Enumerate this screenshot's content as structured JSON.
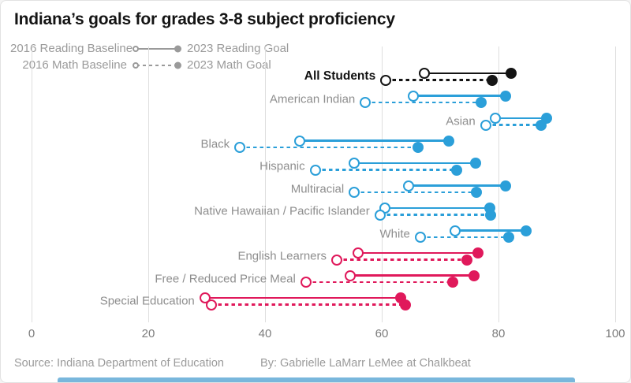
{
  "title": "Indiana’s goals for grades 3-8 subject proficiency",
  "legend": {
    "reading": {
      "left": "2016 Reading Baseline",
      "right": "2023 Reading Goal",
      "style": "solid"
    },
    "math": {
      "left": "2016 Math Baseline",
      "right": "2023 Math Goal",
      "style": "dashed"
    }
  },
  "footer": {
    "source": "Source: Indiana Department of Education",
    "byline": "By: Gabrielle LaMarr LeMee at Chalkbeat"
  },
  "colors": {
    "blue": "#2b9fd9",
    "pink": "#e0195b",
    "black": "#141414",
    "grid": "#dedede",
    "muted_text": "#8e8e8e",
    "footer_bar": "#79b7dc"
  },
  "chart_data": {
    "type": "dumbbell",
    "title": "Indiana’s goals for grades 3-8 subject proficiency",
    "xlabel": "",
    "ylabel": "",
    "xlim": [
      0,
      100
    ],
    "x_ticks": [
      0,
      20,
      40,
      60,
      80,
      100
    ],
    "grid": "vertical",
    "legend_position": "top-left",
    "legend_entries": [
      "2016 Reading Baseline",
      "2023 Reading Goal",
      "2016 Math Baseline",
      "2023 Math Goal"
    ],
    "series": [
      {
        "category": "All Students",
        "color": "#141414",
        "emphasis": true,
        "reading_baseline_2016": 67.3,
        "reading_goal_2023": 82.2,
        "math_baseline_2016": 60.7,
        "math_goal_2023": 78.9
      },
      {
        "category": "American Indian",
        "color": "#2b9fd9",
        "emphasis": false,
        "reading_baseline_2016": 65.4,
        "reading_goal_2023": 81.2,
        "math_baseline_2016": 57.2,
        "math_goal_2023": 77.0
      },
      {
        "category": "Asian",
        "color": "#2b9fd9",
        "emphasis": false,
        "reading_baseline_2016": 79.5,
        "reading_goal_2023": 88.2,
        "math_baseline_2016": 77.8,
        "math_goal_2023": 87.3
      },
      {
        "category": "Black",
        "color": "#2b9fd9",
        "emphasis": false,
        "reading_baseline_2016": 45.9,
        "reading_goal_2023": 71.5,
        "math_baseline_2016": 35.7,
        "math_goal_2023": 66.2
      },
      {
        "category": "Hispanic",
        "color": "#2b9fd9",
        "emphasis": false,
        "reading_baseline_2016": 55.3,
        "reading_goal_2023": 76.1,
        "math_baseline_2016": 48.6,
        "math_goal_2023": 72.8
      },
      {
        "category": "Multiracial",
        "color": "#2b9fd9",
        "emphasis": false,
        "reading_baseline_2016": 64.6,
        "reading_goal_2023": 81.2,
        "math_baseline_2016": 55.3,
        "math_goal_2023": 76.2
      },
      {
        "category": "Native Hawaiian / Pacific Islander",
        "color": "#2b9fd9",
        "emphasis": false,
        "reading_baseline_2016": 60.5,
        "reading_goal_2023": 78.5,
        "math_baseline_2016": 59.7,
        "math_goal_2023": 78.7
      },
      {
        "category": "White",
        "color": "#2b9fd9",
        "emphasis": false,
        "reading_baseline_2016": 72.6,
        "reading_goal_2023": 84.7,
        "math_baseline_2016": 66.6,
        "math_goal_2023": 81.8
      },
      {
        "category": "English Learners",
        "color": "#e0195b",
        "emphasis": false,
        "reading_baseline_2016": 55.9,
        "reading_goal_2023": 76.5,
        "math_baseline_2016": 52.3,
        "math_goal_2023": 74.6
      },
      {
        "category": "Free / Reduced Price Meal",
        "color": "#e0195b",
        "emphasis": false,
        "reading_baseline_2016": 54.6,
        "reading_goal_2023": 75.8,
        "math_baseline_2016": 47.0,
        "math_goal_2023": 72.2
      },
      {
        "category": "Special Education",
        "color": "#e0195b",
        "emphasis": false,
        "reading_baseline_2016": 29.7,
        "reading_goal_2023": 63.2,
        "math_baseline_2016": 30.8,
        "math_goal_2023": 64.1
      }
    ]
  }
}
